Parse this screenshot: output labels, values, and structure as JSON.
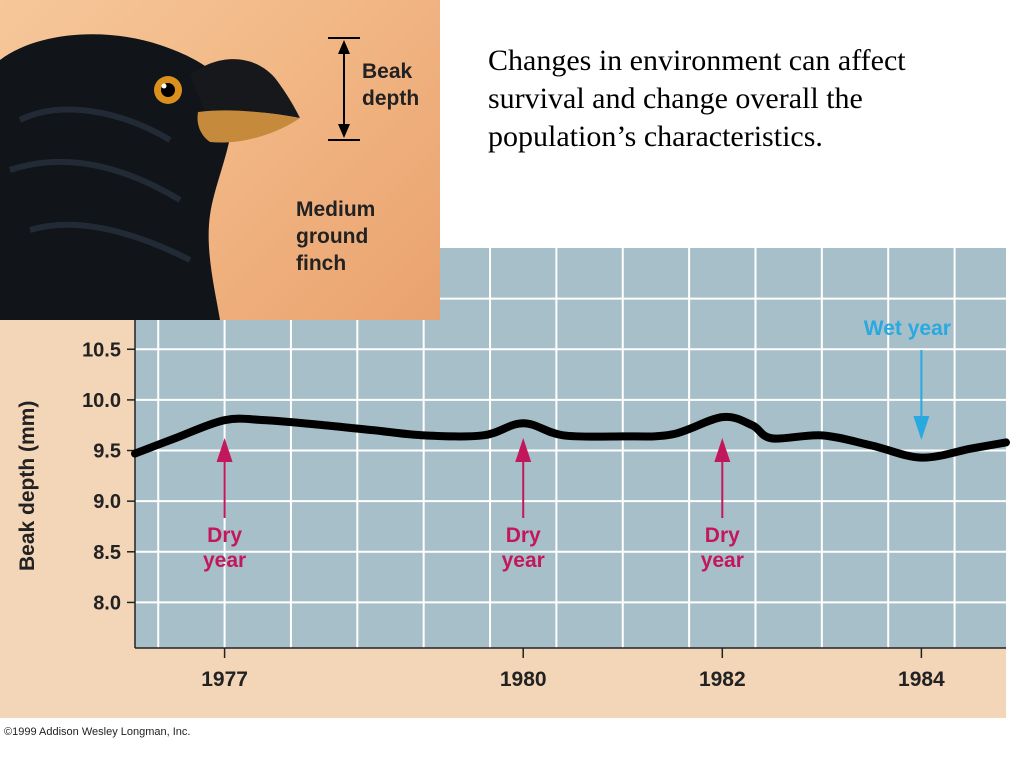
{
  "headline": "Changes in environment can affect survival and change overall the population’s characteristics.",
  "illustration": {
    "beak_depth_label": "Beak depth",
    "species_label": "Medium ground finch"
  },
  "copyright": "©1999 Addison Wesley Longman, Inc.",
  "colors": {
    "plot_background": "#a7bfc9",
    "frame_background": "#f3d5b8",
    "dry_year_annotation": "#c2185b",
    "wet_year_annotation": "#29a9e0",
    "line": "#000000"
  },
  "chart_data": {
    "type": "line",
    "title": "",
    "xlabel": "",
    "ylabel": "Beak depth (mm)",
    "ylim": [
      7.55,
      11.5
    ],
    "xlim": [
      1976.1,
      1984.85
    ],
    "grid": true,
    "y_ticks": [
      "8.0",
      "8.5",
      "9.0",
      "9.5",
      "10.0",
      "10.5"
    ],
    "x_ticks": [
      "1977",
      "1980",
      "1982",
      "1984"
    ],
    "series": [
      {
        "points": [
          [
            1976.1,
            9.47
          ],
          [
            1976.5,
            9.62
          ],
          [
            1977.0,
            9.8
          ],
          [
            1977.4,
            9.8
          ],
          [
            1978.0,
            9.75
          ],
          [
            1978.5,
            9.7
          ],
          [
            1979.0,
            9.65
          ],
          [
            1979.6,
            9.65
          ],
          [
            1980.0,
            9.77
          ],
          [
            1980.4,
            9.65
          ],
          [
            1981.0,
            9.64
          ],
          [
            1981.5,
            9.66
          ],
          [
            1982.0,
            9.83
          ],
          [
            1982.3,
            9.75
          ],
          [
            1982.5,
            9.62
          ],
          [
            1983.0,
            9.65
          ],
          [
            1983.5,
            9.55
          ],
          [
            1984.0,
            9.43
          ],
          [
            1984.5,
            9.52
          ],
          [
            1984.85,
            9.58
          ]
        ]
      }
    ],
    "annotations": [
      {
        "kind": "dry",
        "label_line1": "Dry",
        "label_line2": "year",
        "x": 1977.0
      },
      {
        "kind": "dry",
        "label_line1": "Dry",
        "label_line2": "year",
        "x": 1980.0
      },
      {
        "kind": "dry",
        "label_line1": "Dry",
        "label_line2": "year",
        "x": 1982.0
      },
      {
        "kind": "wet",
        "label": "Wet year",
        "x": 1984.0
      }
    ]
  }
}
